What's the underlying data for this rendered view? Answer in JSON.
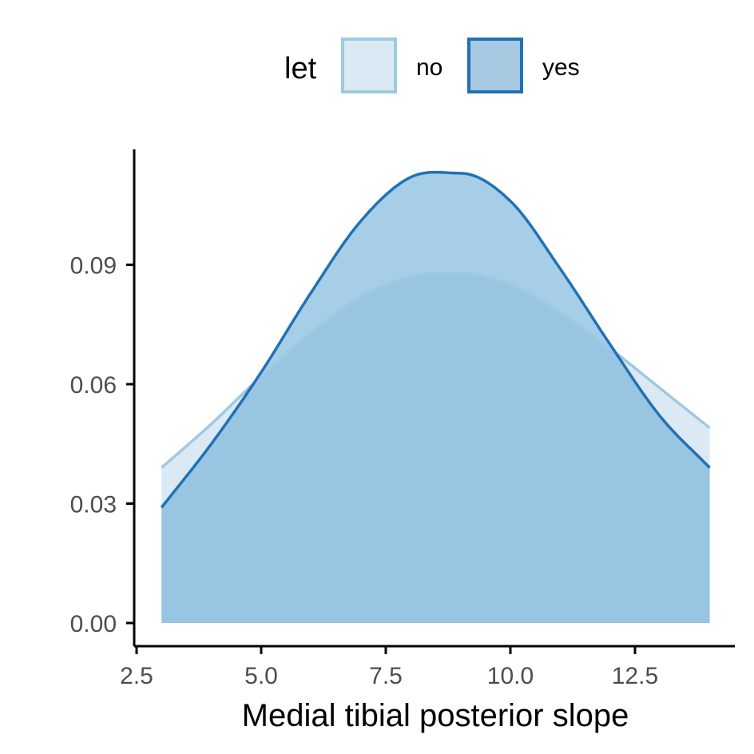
{
  "chart_data": {
    "type": "area",
    "subtype": "density",
    "xlabel": "Medial tibial posterior slope",
    "ylabel": "",
    "xlim": [
      2.5,
      14.5
    ],
    "ylim": [
      0,
      0.12
    ],
    "x_ticks": [
      2.5,
      5.0,
      7.5,
      10.0,
      12.5
    ],
    "x_tick_labels": [
      "2.5",
      "5.0",
      "7.5",
      "10.0",
      "12.5"
    ],
    "y_ticks": [
      0.0,
      0.03,
      0.06,
      0.09
    ],
    "y_tick_labels": [
      "0.00",
      "0.03",
      "0.06",
      "0.09"
    ],
    "grid": false,
    "legend": {
      "title": "let",
      "position": "top",
      "entries": [
        "no",
        "yes"
      ]
    },
    "series": [
      {
        "name": "no",
        "fill": "#c6dbef",
        "line": "#9ecae1",
        "x_range": [
          3.0,
          14.0
        ],
        "x": [
          3.0,
          4.0,
          5.0,
          6.0,
          7.0,
          8.0,
          9.0,
          10.0,
          11.0,
          12.0,
          13.0,
          14.0
        ],
        "y": [
          0.039,
          0.05,
          0.062,
          0.073,
          0.082,
          0.087,
          0.088,
          0.085,
          0.078,
          0.069,
          0.059,
          0.049
        ]
      },
      {
        "name": "yes",
        "fill": "#6baed6",
        "line": "#2171b5",
        "x_range": [
          3.0,
          14.0
        ],
        "x": [
          3.0,
          4.0,
          5.0,
          6.0,
          7.0,
          8.0,
          9.0,
          10.0,
          11.0,
          12.0,
          13.0,
          14.0
        ],
        "y": [
          0.029,
          0.045,
          0.063,
          0.083,
          0.101,
          0.112,
          0.113,
          0.106,
          0.089,
          0.07,
          0.052,
          0.039
        ]
      }
    ]
  }
}
